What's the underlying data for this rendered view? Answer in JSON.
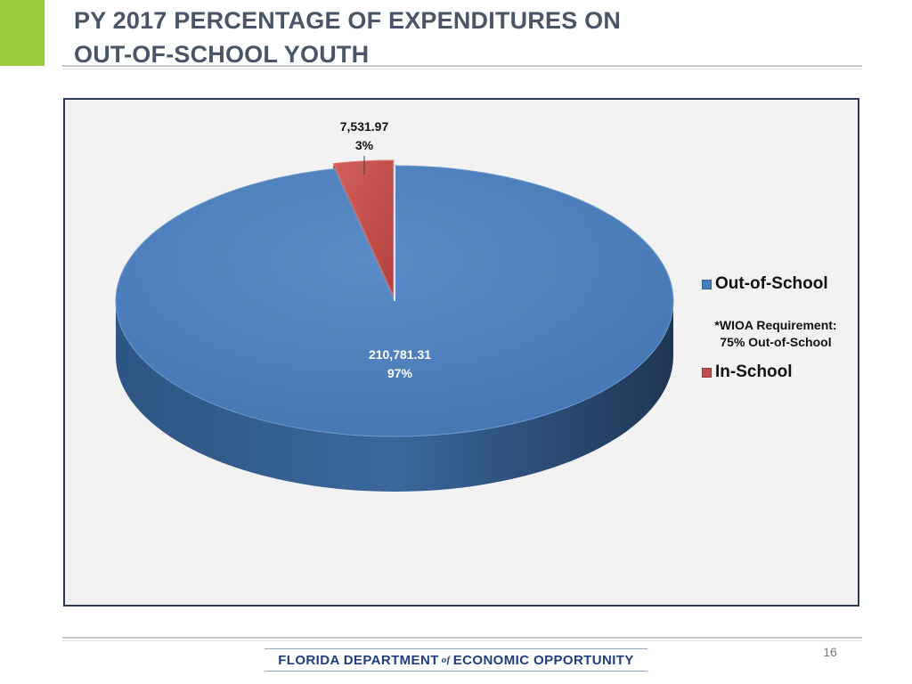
{
  "header": {
    "title_line1": "PY 2017 PERCENTAGE OF EXPENDITURES ON",
    "title_line2": "OUT-OF-SCHOOL YOUTH",
    "accent_color": "#9ccb3b"
  },
  "chart_data": {
    "type": "pie",
    "title": "",
    "slices": [
      {
        "label": "Out-of-School",
        "value": 210781.31,
        "value_label": "210,781.31",
        "percent_label": "97%",
        "color": "#4a7ebb"
      },
      {
        "label": "In-School",
        "value": 7531.97,
        "value_label": "7,531.97",
        "percent_label": "3%",
        "color": "#c0504d",
        "exploded": true
      }
    ],
    "legend_position": "right",
    "legend_note": [
      "*WIOA Requirement:",
      "75% Out-of-School"
    ],
    "style": "3d-exploded"
  },
  "footer": {
    "logo_part1": "FLORIDA DEPARTMENT",
    "logo_of": "of",
    "logo_part2": "ECONOMIC OPPORTUNITY",
    "page_number": "16"
  }
}
